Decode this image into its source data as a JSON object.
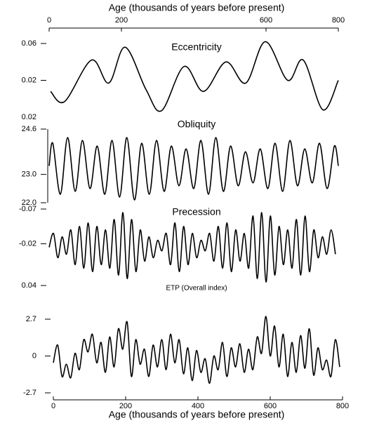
{
  "chart_data": [
    {
      "type": "line",
      "title": "Eccentricity",
      "xlabel": "Age (thousands of years before present)",
      "xlim": [
        0,
        800
      ],
      "xticks": [
        0,
        200,
        600,
        800
      ],
      "ylim": [
        -0.02,
        0.06
      ],
      "yticks": [
        0.06,
        0.02
      ],
      "annotations": [
        "0.02"
      ],
      "color": "#000000",
      "x": [
        4,
        43,
        117,
        165,
        210,
        268,
        311,
        373,
        427,
        489,
        544,
        598,
        660,
        703,
        757,
        800
      ],
      "values": [
        0.008,
        -0.003,
        0.042,
        0.017,
        0.056,
        0.01,
        -0.013,
        0.035,
        0.008,
        0.04,
        0.017,
        0.062,
        0.02,
        0.042,
        -0.012,
        0.02
      ]
    },
    {
      "type": "line",
      "title": "Obliquity",
      "xlim": [
        0,
        800
      ],
      "ylim": [
        22,
        24.6
      ],
      "yticks": [
        24.6,
        {
          "value": 23,
          "label": "23.0"
        },
        {
          "value": 22,
          "label": "22.0"
        }
      ],
      "color": "#000000",
      "x": [
        0,
        10,
        31,
        51,
        72,
        92,
        113,
        133,
        154,
        174,
        195,
        215,
        236,
        256,
        277,
        297,
        318,
        338,
        359,
        379,
        400,
        420,
        441,
        461,
        482,
        502,
        523,
        543,
        564,
        584,
        605,
        625,
        646,
        666,
        687,
        707,
        728,
        748,
        769,
        789,
        800
      ],
      "values": [
        23.3,
        24.1,
        22.3,
        24.3,
        22.4,
        24.2,
        22.5,
        24.0,
        22.3,
        24.2,
        22.2,
        24.3,
        22.1,
        24.1,
        22.3,
        24.2,
        22.4,
        24.0,
        22.6,
        23.9,
        22.5,
        24.2,
        22.3,
        24.3,
        22.4,
        24.0,
        22.6,
        23.8,
        22.7,
        23.9,
        22.5,
        24.1,
        22.4,
        24.2,
        22.6,
        23.9,
        22.7,
        24.1,
        22.5,
        24.0,
        23.3
      ]
    },
    {
      "type": "line",
      "title": "Precession",
      "xlim": [
        0,
        800
      ],
      "ylim": [
        0.04,
        -0.07
      ],
      "yticks": [
        -0.07,
        -0.02,
        0.04
      ],
      "color": "#000000",
      "x": [
        0,
        12,
        24,
        36,
        48,
        60,
        72,
        84,
        96,
        108,
        120,
        132,
        144,
        156,
        168,
        180,
        192,
        204,
        216,
        228,
        240,
        252,
        264,
        276,
        288,
        300,
        312,
        324,
        336,
        348,
        360,
        372,
        384,
        396,
        408,
        420,
        432,
        444,
        456,
        468,
        480,
        492,
        504,
        516,
        528,
        540,
        552,
        564,
        576,
        588,
        600,
        612,
        624,
        636,
        648,
        660,
        672,
        684,
        696,
        708,
        720,
        732,
        744,
        756,
        768,
        780,
        792
      ],
      "values": [
        -0.015,
        -0.035,
        0.0,
        -0.03,
        -0.005,
        -0.04,
        0.01,
        -0.045,
        0.015,
        -0.05,
        0.02,
        -0.045,
        0.01,
        -0.04,
        0.015,
        -0.055,
        0.025,
        -0.065,
        0.03,
        -0.055,
        0.02,
        -0.04,
        0.005,
        -0.03,
        0.0,
        -0.025,
        -0.01,
        -0.035,
        0.01,
        -0.05,
        0.02,
        -0.045,
        0.01,
        -0.035,
        0.0,
        -0.025,
        -0.01,
        -0.035,
        0.005,
        -0.045,
        0.015,
        -0.05,
        0.02,
        -0.04,
        0.005,
        -0.035,
        0.015,
        -0.06,
        0.03,
        -0.065,
        0.035,
        -0.06,
        0.025,
        -0.045,
        0.01,
        -0.04,
        0.015,
        -0.055,
        0.025,
        -0.06,
        0.02,
        -0.04,
        0.0,
        -0.03,
        -0.005,
        -0.04,
        -0.005
      ]
    },
    {
      "type": "line",
      "title": "ETP (Overall index)",
      "xlabel": "Age (thousands of years before present)",
      "xlim": [
        0,
        800
      ],
      "xticks": [
        0,
        200,
        400,
        600,
        800
      ],
      "ylim": [
        -2.7,
        2.7
      ],
      "yticks": [
        2.7,
        0,
        -2.7
      ],
      "color": "#000000",
      "x": [
        0,
        12,
        24,
        36,
        48,
        60,
        72,
        84,
        96,
        108,
        120,
        132,
        144,
        156,
        168,
        180,
        192,
        204,
        216,
        228,
        240,
        252,
        264,
        276,
        288,
        300,
        312,
        324,
        336,
        348,
        360,
        372,
        384,
        396,
        408,
        420,
        432,
        444,
        456,
        468,
        480,
        492,
        504,
        516,
        528,
        540,
        552,
        564,
        576,
        588,
        600,
        612,
        624,
        636,
        648,
        660,
        672,
        684,
        696,
        708,
        720,
        732,
        744,
        756,
        768,
        780,
        792
      ],
      "values": [
        -0.5,
        0.8,
        -1.5,
        -0.6,
        -1.6,
        0.2,
        -1.0,
        1.2,
        0.3,
        1.6,
        -0.5,
        1.0,
        -1.2,
        1.4,
        -0.8,
        2.0,
        0.5,
        2.5,
        -1.5,
        1.2,
        -0.6,
        0.5,
        -1.5,
        0.8,
        -0.8,
        1.2,
        -1.0,
        1.6,
        -0.5,
        1.2,
        -1.3,
        0.6,
        -1.8,
        0.4,
        -1.2,
        -0.2,
        -2.0,
        0.0,
        -1.0,
        1.0,
        -1.5,
        0.6,
        -0.8,
        0.9,
        -1.2,
        0.5,
        -1.0,
        1.4,
        0.2,
        2.9,
        0.0,
        2.2,
        -0.8,
        1.6,
        -1.5,
        1.0,
        -1.2,
        1.5,
        -0.9,
        2.0,
        -1.4,
        0.6,
        -1.0,
        -0.3,
        -1.5,
        1.2,
        -0.8
      ]
    }
  ]
}
